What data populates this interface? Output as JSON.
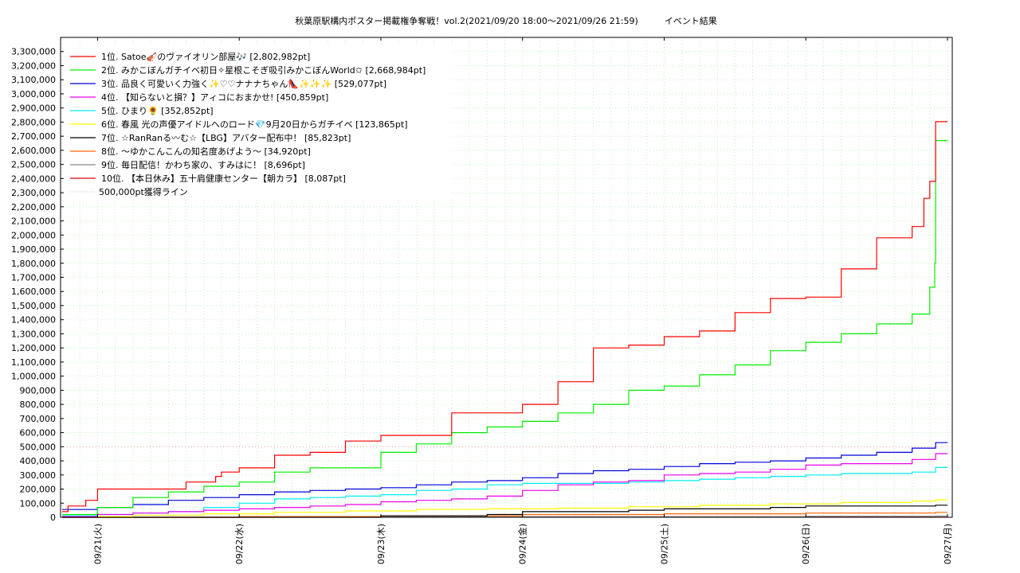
{
  "chart_data": {
    "type": "line",
    "title": "秋葉原駅構内ポスター掲載権争奪戦！vol.2(2021/09/20 18:00～2021/09/26 21:59)　　　イベント結果",
    "xlabel": "",
    "ylabel": "",
    "x_ticks": [
      "09/21(火)",
      "09/22(水)",
      "09/23(木)",
      "09/24(金)",
      "09/25(土)",
      "09/26(日)",
      "09/27(月)"
    ],
    "x_range": [
      "09/20 18:00",
      "09/27 00:00"
    ],
    "ylim": [
      0,
      3400000
    ],
    "y_ticks": [
      0,
      100000,
      200000,
      300000,
      400000,
      500000,
      600000,
      700000,
      800000,
      900000,
      1000000,
      1100000,
      1200000,
      1300000,
      1400000,
      1500000,
      1600000,
      1700000,
      1800000,
      1900000,
      2000000,
      2100000,
      2200000,
      2300000,
      2400000,
      2500000,
      2600000,
      2700000,
      2800000,
      2900000,
      3000000,
      3100000,
      3200000,
      3300000
    ],
    "y_tick_labels": [
      "0",
      "100,000",
      "200,000",
      "300,000",
      "400,000",
      "500,000",
      "600,000",
      "700,000",
      "800,000",
      "900,000",
      "1,000,000",
      "1,100,000",
      "1,200,000",
      "1,300,000",
      "1,400,000",
      "1,500,000",
      "1,600,000",
      "1,700,000",
      "1,800,000",
      "1,900,000",
      "2,000,000",
      "2,100,000",
      "2,200,000",
      "2,300,000",
      "2,400,000",
      "2,500,000",
      "2,600,000",
      "2,700,000",
      "2,800,000",
      "2,900,000",
      "3,000,000",
      "3,100,000",
      "3,200,000",
      "3,300,000"
    ],
    "grid": true,
    "legend_position": "top-left",
    "series": [
      {
        "name": "1位. Satoe🎻のヴァイオリン部屋🎶 [2,802,982pt]",
        "color": "#ff0000",
        "x": [
          "09/20 18:00",
          "09/20 19:00",
          "09/20 22:00",
          "09/21 00:00",
          "09/21 03:00",
          "09/21 06:00",
          "09/21 12:00",
          "09/21 15:00",
          "09/21 18:00",
          "09/21 20:00",
          "09/21 21:00",
          "09/22 00:00",
          "09/22 06:00",
          "09/22 12:00",
          "09/22 18:00",
          "09/23 00:00",
          "09/23 06:00",
          "09/23 12:00",
          "09/23 18:00",
          "09/24 00:00",
          "09/24 06:00",
          "09/24 12:00",
          "09/24 18:00",
          "09/25 00:00",
          "09/25 06:00",
          "09/25 12:00",
          "09/25 18:00",
          "09/26 00:00",
          "09/26 06:00",
          "09/26 12:00",
          "09/26 18:00",
          "09/26 20:00",
          "09/26 21:00",
          "09/26 21:59",
          "09/27 00:00"
        ],
        "y": [
          40000,
          80000,
          120000,
          200000,
          200000,
          200000,
          200000,
          250000,
          250000,
          290000,
          320000,
          350000,
          440000,
          460000,
          540000,
          580000,
          580000,
          740000,
          740000,
          800000,
          960000,
          1200000,
          1220000,
          1280000,
          1320000,
          1450000,
          1550000,
          1560000,
          1760000,
          1980000,
          2060000,
          2260000,
          2380000,
          2802982,
          2802982
        ]
      },
      {
        "name": "2位. みかこぼんガチイベ初日✧星根こそぎ吸引みかこぼんWorld✩ [2,668,984pt]",
        "color": "#00ee00",
        "x": [
          "09/20 18:00",
          "09/21 00:00",
          "09/21 06:00",
          "09/21 12:00",
          "09/21 18:00",
          "09/22 00:00",
          "09/22 06:00",
          "09/22 12:00",
          "09/22 18:00",
          "09/23 00:00",
          "09/23 06:00",
          "09/23 12:00",
          "09/23 18:00",
          "09/24 00:00",
          "09/24 06:00",
          "09/24 12:00",
          "09/24 18:00",
          "09/25 00:00",
          "09/25 06:00",
          "09/25 12:00",
          "09/25 18:00",
          "09/26 00:00",
          "09/26 06:00",
          "09/26 12:00",
          "09/26 18:00",
          "09/26 21:00",
          "09/26 21:50",
          "09/26 21:59",
          "09/27 00:00"
        ],
        "y": [
          20000,
          70000,
          140000,
          180000,
          220000,
          250000,
          320000,
          350000,
          350000,
          460000,
          520000,
          600000,
          640000,
          680000,
          740000,
          800000,
          900000,
          930000,
          1010000,
          1080000,
          1180000,
          1240000,
          1300000,
          1370000,
          1440000,
          1630000,
          1800000,
          2668984,
          2668984
        ]
      },
      {
        "name": "3位. 品良く可愛いく力強く✨♡♡ナナナちゃん👠✨✨✨ [529,077pt]",
        "color": "#0000dd",
        "x": [
          "09/20 18:00",
          "09/21 00:00",
          "09/21 06:00",
          "09/21 12:00",
          "09/21 18:00",
          "09/22 00:00",
          "09/22 06:00",
          "09/22 12:00",
          "09/22 18:00",
          "09/23 00:00",
          "09/23 06:00",
          "09/23 12:00",
          "09/23 18:00",
          "09/24 00:00",
          "09/24 06:00",
          "09/24 12:00",
          "09/24 18:00",
          "09/25 00:00",
          "09/25 06:00",
          "09/25 12:00",
          "09/25 18:00",
          "09/26 00:00",
          "09/26 06:00",
          "09/26 12:00",
          "09/26 18:00",
          "09/26 21:59",
          "09/27 00:00"
        ],
        "y": [
          55000,
          70000,
          90000,
          120000,
          140000,
          160000,
          180000,
          190000,
          200000,
          210000,
          230000,
          250000,
          260000,
          280000,
          310000,
          330000,
          340000,
          360000,
          380000,
          390000,
          400000,
          420000,
          440000,
          460000,
          490000,
          529077,
          529077
        ]
      },
      {
        "name": "4位. 【知らないと損？】アィコにおまかせ! [450,859pt]",
        "color": "#ee00ee",
        "x": [
          "09/20 18:00",
          "09/21 00:00",
          "09/21 06:00",
          "09/21 12:00",
          "09/21 18:00",
          "09/22 00:00",
          "09/22 06:00",
          "09/22 12:00",
          "09/22 18:00",
          "09/23 00:00",
          "09/23 06:00",
          "09/23 12:00",
          "09/23 18:00",
          "09/24 00:00",
          "09/24 06:00",
          "09/24 12:00",
          "09/24 18:00",
          "09/25 00:00",
          "09/25 06:00",
          "09/25 12:00",
          "09/25 18:00",
          "09/26 00:00",
          "09/26 06:00",
          "09/26 12:00",
          "09/26 18:00",
          "09/26 21:59",
          "09/27 00:00"
        ],
        "y": [
          5000,
          20000,
          30000,
          40000,
          50000,
          60000,
          70000,
          80000,
          90000,
          110000,
          120000,
          130000,
          150000,
          190000,
          230000,
          250000,
          260000,
          300000,
          310000,
          320000,
          340000,
          370000,
          380000,
          380000,
          410000,
          450859,
          450859
        ]
      },
      {
        "name": "5位. ひまり🌻 [352,852pt]",
        "color": "#00eeee",
        "x": [
          "09/20 18:00",
          "09/21 00:00",
          "09/21 06:00",
          "09/21 12:00",
          "09/21 18:00",
          "09/22 00:00",
          "09/22 06:00",
          "09/22 12:00",
          "09/22 18:00",
          "09/23 00:00",
          "09/23 06:00",
          "09/23 12:00",
          "09/23 18:00",
          "09/24 00:00",
          "09/24 06:00",
          "09/24 12:00",
          "09/24 18:00",
          "09/25 00:00",
          "09/25 06:00",
          "09/25 12:00",
          "09/25 18:00",
          "09/26 00:00",
          "09/26 06:00",
          "09/26 12:00",
          "09/26 18:00",
          "09/26 21:59",
          "09/27 00:00"
        ],
        "y": [
          10000,
          20000,
          30000,
          40000,
          70000,
          100000,
          130000,
          140000,
          150000,
          160000,
          190000,
          200000,
          230000,
          240000,
          240000,
          240000,
          250000,
          260000,
          270000,
          280000,
          290000,
          300000,
          310000,
          310000,
          320000,
          352852,
          352852
        ]
      },
      {
        "name": "6位. 春風 光の声優アイドルへのロード💎9月20日からガチイベ [123,865pt]",
        "color": "#ffff00",
        "x": [
          "09/20 18:00",
          "09/21 06:00",
          "09/21 18:00",
          "09/22 06:00",
          "09/22 18:00",
          "09/23 06:00",
          "09/23 18:00",
          "09/24 06:00",
          "09/24 18:00",
          "09/25 06:00",
          "09/25 18:00",
          "09/26 06:00",
          "09/26 18:00",
          "09/26 21:59",
          "09/27 00:00"
        ],
        "y": [
          5000,
          15000,
          25000,
          35000,
          45000,
          55000,
          60000,
          65000,
          75000,
          85000,
          95000,
          105000,
          115000,
          123865,
          123865
        ]
      },
      {
        "name": "7位. ☆RanRanる〰む☆【LBG】アバター配布中！ [85,823pt]",
        "color": "#000000",
        "x": [
          "09/20 18:00",
          "09/22 12:00",
          "09/23 00:00",
          "09/23 18:00",
          "09/24 00:00",
          "09/24 18:00",
          "09/25 00:00",
          "09/25 18:00",
          "09/26 00:00",
          "09/26 18:00",
          "09/26 21:59",
          "09/27 00:00"
        ],
        "y": [
          0,
          0,
          10000,
          20000,
          40000,
          50000,
          60000,
          70000,
          80000,
          80000,
          85823,
          85823
        ]
      },
      {
        "name": "8位. 〜ゆかこんこんの知名度あげよう〜 [34,920pt]",
        "color": "#ff6600",
        "x": [
          "09/20 18:00",
          "09/22 00:00",
          "09/23 00:00",
          "09/24 00:00",
          "09/25 00:00",
          "09/26 00:00",
          "09/26 21:59",
          "09/27 00:00"
        ],
        "y": [
          0,
          5000,
          10000,
          20000,
          25000,
          30000,
          34920,
          34920
        ]
      },
      {
        "name": "9位. 毎日配信！かわち家の、すみはに！ [8,696pt]",
        "color": "#888888",
        "x": [
          "09/20 18:00",
          "09/22 00:00",
          "09/24 00:00",
          "09/26 00:00",
          "09/26 21:59",
          "09/27 00:00"
        ],
        "y": [
          0,
          2000,
          4000,
          7000,
          8696,
          8696
        ]
      },
      {
        "name": "10位. 【本日休み】五十肩健康センター【朝カラ】 [8,087pt]",
        "color": "#dd0000",
        "x": [
          "09/20 18:00",
          "09/22 00:00",
          "09/24 00:00",
          "09/26 00:00",
          "09/26 21:59",
          "09/27 00:00"
        ],
        "y": [
          0,
          2000,
          4000,
          7000,
          8087,
          8087
        ]
      }
    ],
    "reference_line": {
      "name": "500,000pt獲得ライン",
      "value": 500000,
      "color": "#bbbbbb"
    }
  }
}
